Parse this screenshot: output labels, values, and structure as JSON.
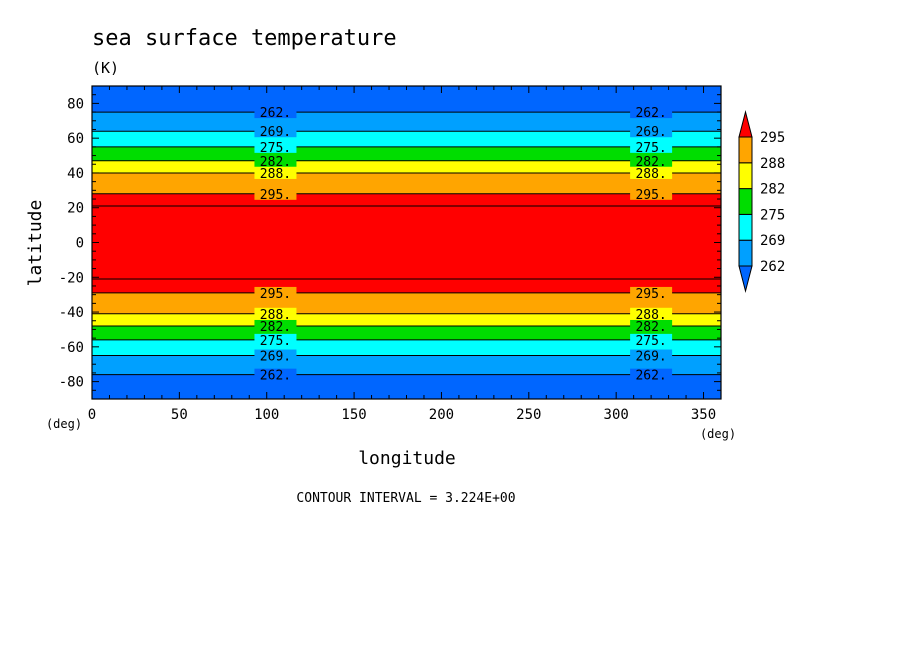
{
  "chart_data": {
    "type": "heatmap",
    "title": "sea surface temperature",
    "subtitle": "(K)",
    "xlabel": "longitude",
    "ylabel": "latitude",
    "x_unit": "(deg)",
    "y_unit": "(deg)",
    "xlim": [
      0,
      360
    ],
    "ylim": [
      -90,
      90
    ],
    "x_ticks": [
      "0",
      "50",
      "100",
      "150",
      "200",
      "250",
      "300",
      "350"
    ],
    "y_ticks": [
      "80",
      "60",
      "40",
      "20",
      "0",
      "-20",
      "-40",
      "-60",
      "-80"
    ],
    "colors": [
      "#0066ff",
      "#00a0ff",
      "#00ffff",
      "#00dd00",
      "#ffff00",
      "#ffa500",
      "#ff0000"
    ],
    "bands": [
      {
        "lat_min": 75,
        "lat_max": 90,
        "color": "#0066ff"
      },
      {
        "lat_min": 64,
        "lat_max": 75,
        "color": "#00a0ff"
      },
      {
        "lat_min": 55,
        "lat_max": 64,
        "color": "#00ffff"
      },
      {
        "lat_min": 47,
        "lat_max": 55,
        "color": "#00dd00"
      },
      {
        "lat_min": 40,
        "lat_max": 47,
        "color": "#ffff00"
      },
      {
        "lat_min": 28,
        "lat_max": 40,
        "color": "#ffa500"
      },
      {
        "lat_min": -29,
        "lat_max": 28,
        "color": "#ff0000"
      },
      {
        "lat_min": -41,
        "lat_max": -29,
        "color": "#ffa500"
      },
      {
        "lat_min": -48,
        "lat_max": -41,
        "color": "#ffff00"
      },
      {
        "lat_min": -56,
        "lat_max": -48,
        "color": "#00dd00"
      },
      {
        "lat_min": -65,
        "lat_max": -56,
        "color": "#00ffff"
      },
      {
        "lat_min": -76,
        "lat_max": -65,
        "color": "#00a0ff"
      },
      {
        "lat_min": -90,
        "lat_max": -76,
        "color": "#0066ff"
      }
    ],
    "contour_lines": [
      {
        "lat": 75,
        "label": "262."
      },
      {
        "lat": 64,
        "label": "269."
      },
      {
        "lat": 55,
        "label": "275."
      },
      {
        "lat": 47,
        "label": "282."
      },
      {
        "lat": 40,
        "label": "288."
      },
      {
        "lat": 28,
        "label": "295."
      },
      {
        "lat": 21,
        "label": ""
      },
      {
        "lat": -21,
        "label": ""
      },
      {
        "lat": -29,
        "label": "295."
      },
      {
        "lat": -41,
        "label": "288."
      },
      {
        "lat": -48,
        "label": "282."
      },
      {
        "lat": -56,
        "label": "275."
      },
      {
        "lat": -65,
        "label": "269."
      },
      {
        "lat": -76,
        "label": "262."
      }
    ],
    "contour_label_longitudes": [
      105,
      320
    ],
    "colorbar_labels": [
      "295",
      "288",
      "282",
      "275",
      "269",
      "262"
    ],
    "annotation": "CONTOUR INTERVAL = 3.224E+00"
  }
}
